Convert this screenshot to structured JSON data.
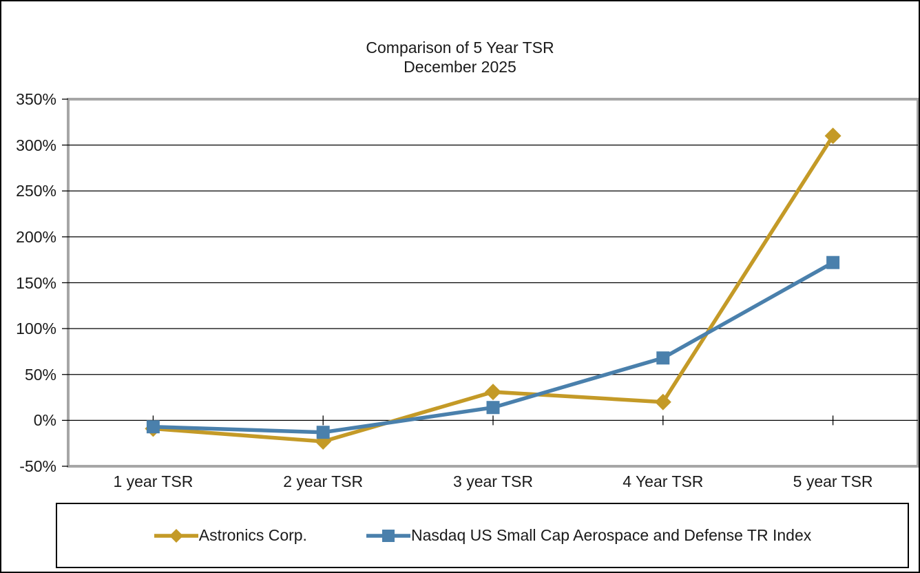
{
  "title": {
    "line1": "Comparison of 5 Year TSR",
    "line2": "December 2025"
  },
  "chart_data": {
    "type": "line",
    "categories": [
      "1 year TSR",
      "2 year TSR",
      "3 year TSR",
      "4 Year TSR",
      "5 year TSR"
    ],
    "series": [
      {
        "name": "Astronics Corp.",
        "marker": "diamond",
        "color": "#C49A27",
        "values": [
          -9,
          -23,
          31,
          20,
          310
        ]
      },
      {
        "name": "Nasdaq US Small Cap Aerospace and Defense TR Index",
        "marker": "square",
        "color": "#4A80AC",
        "values": [
          -7,
          -13,
          14,
          68,
          172
        ]
      }
    ],
    "ylabel": "",
    "xlabel": "",
    "ylim": [
      -50,
      350
    ],
    "ytick_step": 50,
    "ytick_labels": [
      "350%",
      "300%",
      "250%",
      "200%",
      "150%",
      "100%",
      "50%",
      "0%",
      "-50%"
    ],
    "grid": true,
    "legend_position": "bottom",
    "plot_border_color": "#A6A6A6",
    "gridline_color": "#000000",
    "text_color": "#1a1a1a"
  }
}
